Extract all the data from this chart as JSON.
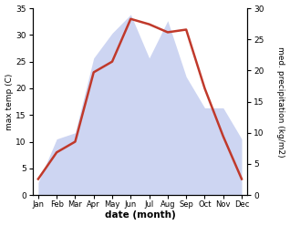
{
  "months": [
    "Jan",
    "Feb",
    "Mar",
    "Apr",
    "May",
    "Jun",
    "Jul",
    "Aug",
    "Sep",
    "Oct",
    "Nov",
    "Dec"
  ],
  "month_indices": [
    0,
    1,
    2,
    3,
    4,
    5,
    6,
    7,
    8,
    9,
    10,
    11
  ],
  "temperature": [
    3,
    8,
    10,
    23,
    25,
    33,
    32,
    30.5,
    31,
    20,
    11,
    3
  ],
  "precipitation": [
    2,
    9,
    10,
    22,
    26,
    29,
    22,
    28,
    19,
    14,
    14,
    9
  ],
  "temp_color": "#c0392b",
  "precip_fill_color": "#c5cef0",
  "precip_alpha": 0.85,
  "temp_ylim": [
    0,
    35
  ],
  "precip_ylim": [
    0,
    30
  ],
  "temp_yticks": [
    0,
    5,
    10,
    15,
    20,
    25,
    30,
    35
  ],
  "precip_yticks": [
    0,
    5,
    10,
    15,
    20,
    25,
    30
  ],
  "xlabel": "date (month)",
  "ylabel_left": "max temp (C)",
  "ylabel_right": "med. precipitation (kg/m2)",
  "background_color": "#ffffff",
  "figsize": [
    3.18,
    2.47
  ],
  "dpi": 100
}
